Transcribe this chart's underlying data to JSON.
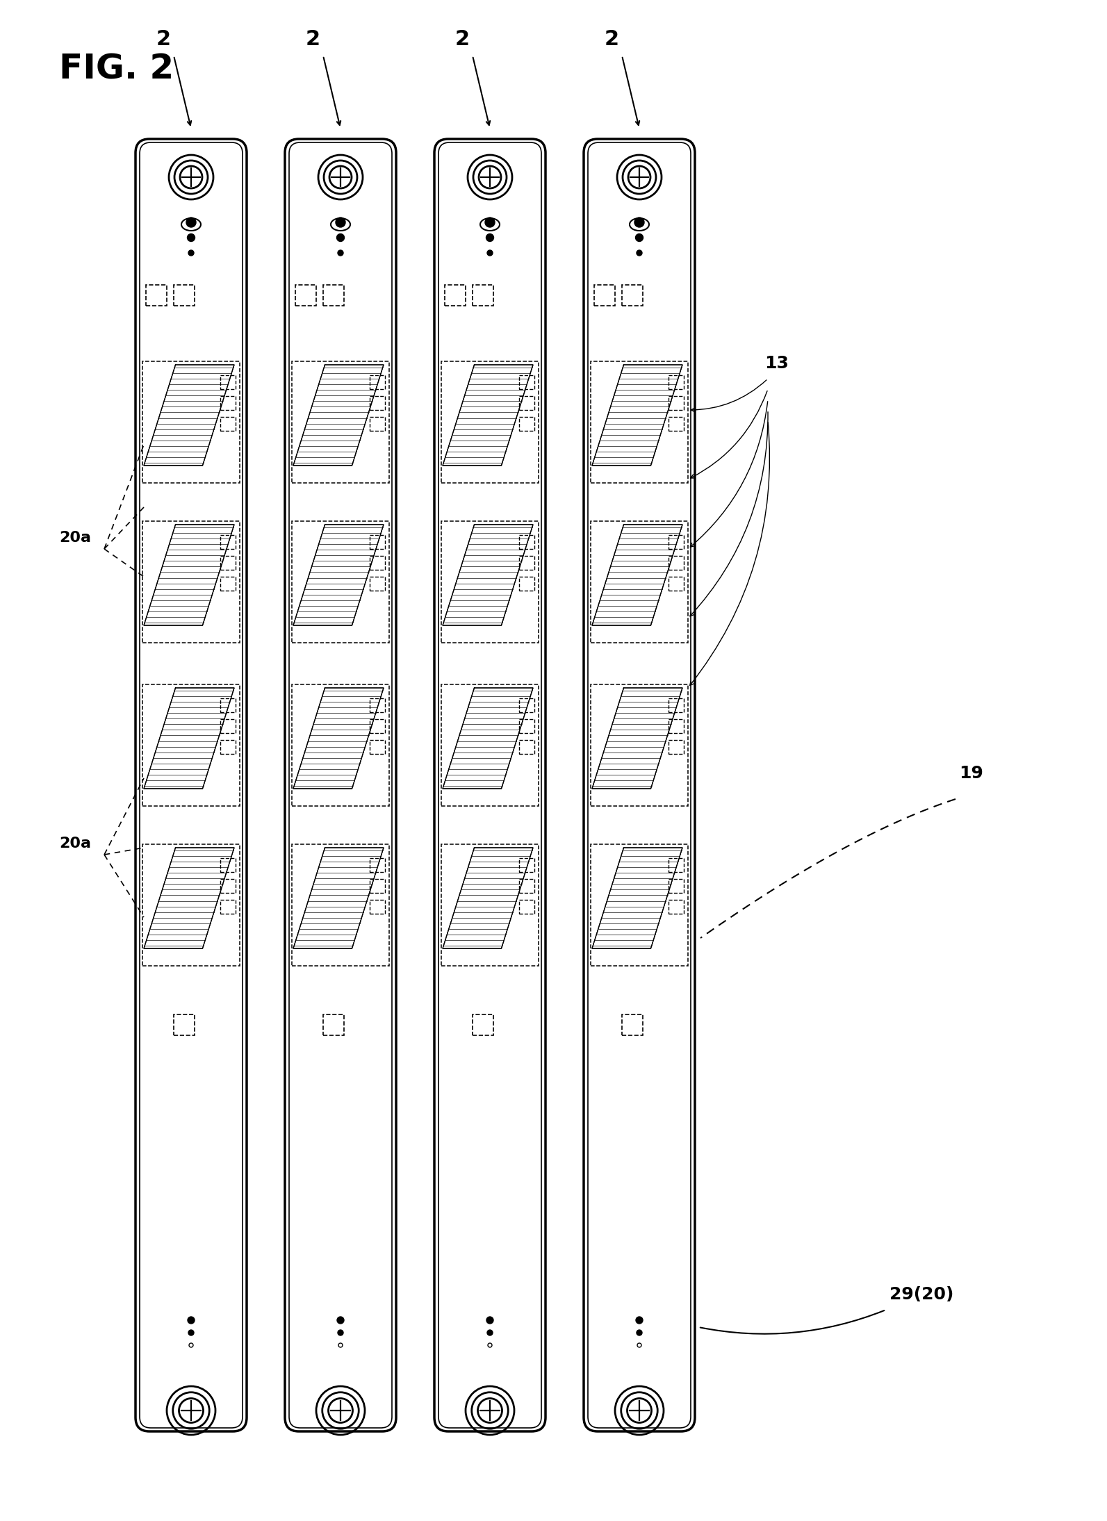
{
  "title": "FIG. 2",
  "bg_color": "#ffffff",
  "num_heads": 4,
  "label_2": "2",
  "label_13": "13",
  "label_19": "19",
  "label_20a": "20a",
  "label_29_20": "29(20)"
}
